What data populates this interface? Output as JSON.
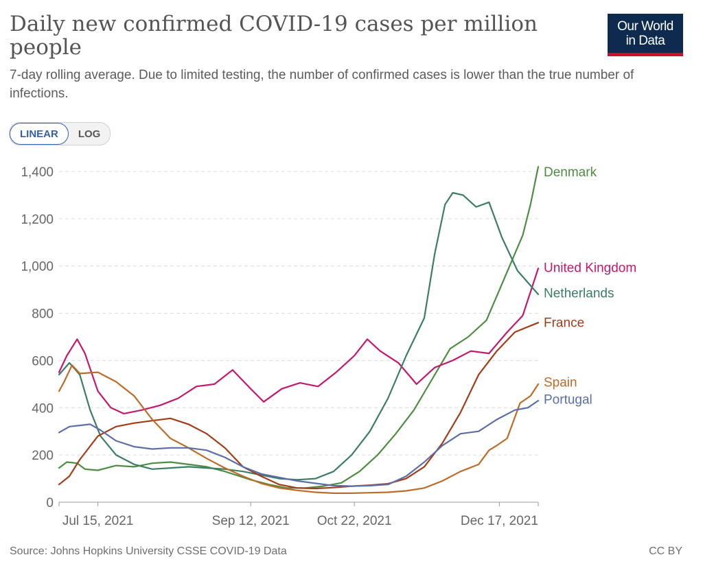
{
  "title": "Daily new confirmed COVID-19 cases per million people",
  "subtitle": "7-day rolling average. Due to limited testing, the number of confirmed cases is lower than the true number of infections.",
  "logo": {
    "line1": "Our World",
    "line2": "in Data"
  },
  "toggle": {
    "linear": "LINEAR",
    "log": "LOG"
  },
  "footer": {
    "source": "Source: Johns Hopkins University CSSE COVID-19 Data",
    "license": "CC BY"
  },
  "colors": {
    "Denmark": "#4c8d3f",
    "United Kingdom": "#c6166b",
    "Netherlands": "#3a7d64",
    "France": "#a33b17",
    "Spain": "#bf6a26",
    "Portugal": "#5c6da9"
  },
  "chart_data": {
    "type": "line",
    "x_start": "2021-06-30",
    "x_end": "2022-01-01",
    "xticks": [
      {
        "date": "2021-07-15",
        "label": "Jul 15, 2021"
      },
      {
        "date": "2021-09-12",
        "label": "Sep 12, 2021"
      },
      {
        "date": "2021-10-22",
        "label": "Oct 22, 2021"
      },
      {
        "date": "2021-12-17",
        "label": "Dec 17, 2021"
      }
    ],
    "yticks": [
      0,
      200,
      400,
      600,
      800,
      1000,
      1200,
      1400
    ],
    "yticklabels": [
      "0",
      "200",
      "400",
      "600",
      "800",
      "1,000",
      "1,200",
      "1,400"
    ],
    "ylim": [
      0,
      1400
    ],
    "grid": true,
    "series": [
      {
        "name": "Denmark",
        "points": [
          [
            "2021-06-30",
            145
          ],
          [
            "2021-07-03",
            170
          ],
          [
            "2021-07-07",
            165
          ],
          [
            "2021-07-10",
            140
          ],
          [
            "2021-07-15",
            135
          ],
          [
            "2021-07-22",
            155
          ],
          [
            "2021-07-29",
            150
          ],
          [
            "2021-08-05",
            165
          ],
          [
            "2021-08-12",
            170
          ],
          [
            "2021-08-19",
            160
          ],
          [
            "2021-08-26",
            150
          ],
          [
            "2021-09-02",
            130
          ],
          [
            "2021-09-12",
            95
          ],
          [
            "2021-09-19",
            75
          ],
          [
            "2021-09-26",
            60
          ],
          [
            "2021-10-03",
            60
          ],
          [
            "2021-10-10",
            68
          ],
          [
            "2021-10-17",
            82
          ],
          [
            "2021-10-24",
            130
          ],
          [
            "2021-10-31",
            200
          ],
          [
            "2021-11-07",
            290
          ],
          [
            "2021-11-14",
            390
          ],
          [
            "2021-11-21",
            520
          ],
          [
            "2021-11-28",
            650
          ],
          [
            "2021-12-05",
            700
          ],
          [
            "2021-12-12",
            770
          ],
          [
            "2021-12-19",
            950
          ],
          [
            "2021-12-26",
            1130
          ],
          [
            "2021-12-29",
            1260
          ],
          [
            "2022-01-01",
            1420
          ]
        ]
      },
      {
        "name": "United Kingdom",
        "points": [
          [
            "2021-06-30",
            550
          ],
          [
            "2021-07-03",
            620
          ],
          [
            "2021-07-07",
            690
          ],
          [
            "2021-07-10",
            630
          ],
          [
            "2021-07-15",
            470
          ],
          [
            "2021-07-20",
            400
          ],
          [
            "2021-07-25",
            375
          ],
          [
            "2021-08-01",
            390
          ],
          [
            "2021-08-08",
            410
          ],
          [
            "2021-08-15",
            440
          ],
          [
            "2021-08-22",
            490
          ],
          [
            "2021-08-29",
            500
          ],
          [
            "2021-09-05",
            560
          ],
          [
            "2021-09-12",
            480
          ],
          [
            "2021-09-17",
            425
          ],
          [
            "2021-09-24",
            480
          ],
          [
            "2021-10-01",
            505
          ],
          [
            "2021-10-08",
            490
          ],
          [
            "2021-10-15",
            550
          ],
          [
            "2021-10-22",
            620
          ],
          [
            "2021-10-27",
            690
          ],
          [
            "2021-11-01",
            640
          ],
          [
            "2021-11-08",
            590
          ],
          [
            "2021-11-15",
            500
          ],
          [
            "2021-11-22",
            570
          ],
          [
            "2021-11-29",
            600
          ],
          [
            "2021-12-06",
            640
          ],
          [
            "2021-12-13",
            630
          ],
          [
            "2021-12-20",
            720
          ],
          [
            "2021-12-26",
            790
          ],
          [
            "2022-01-01",
            990
          ]
        ]
      },
      {
        "name": "Netherlands",
        "points": [
          [
            "2021-06-30",
            540
          ],
          [
            "2021-07-04",
            590
          ],
          [
            "2021-07-08",
            540
          ],
          [
            "2021-07-12",
            390
          ],
          [
            "2021-07-16",
            280
          ],
          [
            "2021-07-22",
            200
          ],
          [
            "2021-07-29",
            160
          ],
          [
            "2021-08-05",
            140
          ],
          [
            "2021-08-12",
            145
          ],
          [
            "2021-08-19",
            150
          ],
          [
            "2021-08-26",
            145
          ],
          [
            "2021-09-02",
            140
          ],
          [
            "2021-09-09",
            130
          ],
          [
            "2021-09-16",
            115
          ],
          [
            "2021-09-23",
            100
          ],
          [
            "2021-09-30",
            95
          ],
          [
            "2021-10-07",
            100
          ],
          [
            "2021-10-14",
            130
          ],
          [
            "2021-10-21",
            200
          ],
          [
            "2021-10-28",
            300
          ],
          [
            "2021-11-04",
            440
          ],
          [
            "2021-11-11",
            620
          ],
          [
            "2021-11-18",
            780
          ],
          [
            "2021-11-22",
            1050
          ],
          [
            "2021-11-26",
            1260
          ],
          [
            "2021-11-29",
            1310
          ],
          [
            "2021-12-03",
            1300
          ],
          [
            "2021-12-08",
            1250
          ],
          [
            "2021-12-13",
            1270
          ],
          [
            "2021-12-18",
            1120
          ],
          [
            "2021-12-24",
            980
          ],
          [
            "2022-01-01",
            880
          ]
        ]
      },
      {
        "name": "France",
        "points": [
          [
            "2021-06-30",
            75
          ],
          [
            "2021-07-04",
            110
          ],
          [
            "2021-07-08",
            180
          ],
          [
            "2021-07-15",
            280
          ],
          [
            "2021-07-22",
            320
          ],
          [
            "2021-07-29",
            335
          ],
          [
            "2021-08-05",
            345
          ],
          [
            "2021-08-12",
            355
          ],
          [
            "2021-08-19",
            330
          ],
          [
            "2021-08-26",
            290
          ],
          [
            "2021-09-02",
            230
          ],
          [
            "2021-09-09",
            150
          ],
          [
            "2021-09-16",
            110
          ],
          [
            "2021-09-23",
            75
          ],
          [
            "2021-09-30",
            60
          ],
          [
            "2021-10-07",
            58
          ],
          [
            "2021-10-14",
            62
          ],
          [
            "2021-10-21",
            68
          ],
          [
            "2021-10-28",
            72
          ],
          [
            "2021-11-04",
            78
          ],
          [
            "2021-11-11",
            100
          ],
          [
            "2021-11-18",
            150
          ],
          [
            "2021-11-25",
            250
          ],
          [
            "2021-12-02",
            380
          ],
          [
            "2021-12-09",
            540
          ],
          [
            "2021-12-16",
            640
          ],
          [
            "2021-12-23",
            720
          ],
          [
            "2022-01-01",
            760
          ]
        ]
      },
      {
        "name": "Spain",
        "points": [
          [
            "2021-06-30",
            470
          ],
          [
            "2021-07-02",
            510
          ],
          [
            "2021-07-05",
            580
          ],
          [
            "2021-07-08",
            545
          ],
          [
            "2021-07-15",
            550
          ],
          [
            "2021-07-22",
            510
          ],
          [
            "2021-07-29",
            450
          ],
          [
            "2021-08-05",
            350
          ],
          [
            "2021-08-12",
            270
          ],
          [
            "2021-08-19",
            230
          ],
          [
            "2021-08-26",
            185
          ],
          [
            "2021-09-02",
            145
          ],
          [
            "2021-09-09",
            110
          ],
          [
            "2021-09-16",
            80
          ],
          [
            "2021-09-23",
            60
          ],
          [
            "2021-09-30",
            50
          ],
          [
            "2021-10-07",
            42
          ],
          [
            "2021-10-14",
            38
          ],
          [
            "2021-10-21",
            38
          ],
          [
            "2021-10-28",
            40
          ],
          [
            "2021-11-04",
            42
          ],
          [
            "2021-11-11",
            48
          ],
          [
            "2021-11-18",
            60
          ],
          [
            "2021-11-25",
            90
          ],
          [
            "2021-12-02",
            130
          ],
          [
            "2021-12-09",
            160
          ],
          [
            "2021-12-13",
            220
          ],
          [
            "2021-12-16",
            240
          ],
          [
            "2021-12-20",
            270
          ],
          [
            "2021-12-25",
            420
          ],
          [
            "2021-12-29",
            450
          ],
          [
            "2022-01-01",
            500
          ]
        ]
      },
      {
        "name": "Portugal",
        "points": [
          [
            "2021-06-30",
            295
          ],
          [
            "2021-07-04",
            320
          ],
          [
            "2021-07-08",
            325
          ],
          [
            "2021-07-12",
            330
          ],
          [
            "2021-07-16",
            305
          ],
          [
            "2021-07-22",
            260
          ],
          [
            "2021-07-29",
            235
          ],
          [
            "2021-08-05",
            225
          ],
          [
            "2021-08-12",
            230
          ],
          [
            "2021-08-19",
            230
          ],
          [
            "2021-08-26",
            220
          ],
          [
            "2021-09-02",
            190
          ],
          [
            "2021-09-09",
            150
          ],
          [
            "2021-09-16",
            120
          ],
          [
            "2021-09-23",
            105
          ],
          [
            "2021-09-30",
            90
          ],
          [
            "2021-10-07",
            80
          ],
          [
            "2021-10-14",
            70
          ],
          [
            "2021-10-21",
            68
          ],
          [
            "2021-10-28",
            70
          ],
          [
            "2021-11-04",
            75
          ],
          [
            "2021-11-11",
            110
          ],
          [
            "2021-11-18",
            170
          ],
          [
            "2021-11-25",
            240
          ],
          [
            "2021-12-02",
            290
          ],
          [
            "2021-12-09",
            300
          ],
          [
            "2021-12-16",
            350
          ],
          [
            "2021-12-23",
            390
          ],
          [
            "2021-12-28",
            400
          ],
          [
            "2022-01-01",
            430
          ]
        ]
      }
    ],
    "labels": [
      {
        "name": "Denmark",
        "value": 1400
      },
      {
        "name": "United Kingdom",
        "value": 995
      },
      {
        "name": "Netherlands",
        "value": 888
      },
      {
        "name": "France",
        "value": 763
      },
      {
        "name": "Spain",
        "value": 510
      },
      {
        "name": "Portugal",
        "value": 437
      }
    ]
  }
}
